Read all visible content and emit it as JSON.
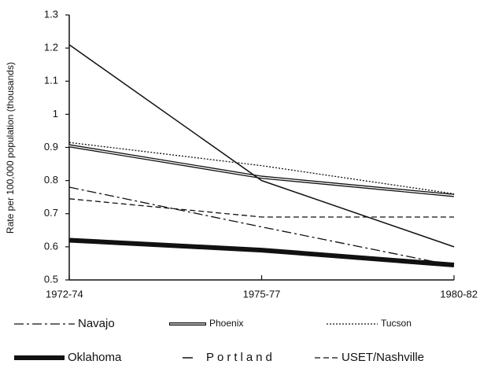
{
  "chart_data": {
    "type": "line",
    "y_label": "Rate per 100,000 population (thousands)",
    "categories": [
      "1972-74",
      "1975-77",
      "1980-82"
    ],
    "ylim": [
      0.5,
      1.3
    ],
    "yticks": [
      0.5,
      0.6,
      0.7,
      0.8,
      0.9,
      1,
      1.1,
      1.2,
      1.3
    ],
    "series": [
      {
        "name": "Navajo",
        "color": "#111111",
        "dash": "12 4 3 4",
        "width": 1.3,
        "values": [
          0.78,
          0.66,
          0.543
        ]
      },
      {
        "name": "Phoenix",
        "color": "#111111",
        "style": "double",
        "width": 4,
        "values": [
          0.905,
          0.81,
          0.755
        ]
      },
      {
        "name": "Tucson",
        "color": "#111111",
        "dash": "2 2",
        "width": 1.3,
        "values": [
          0.915,
          0.845,
          0.76
        ]
      },
      {
        "name": "Oklahoma",
        "color": "#111111",
        "width": 6,
        "values": [
          0.62,
          0.59,
          0.545
        ]
      },
      {
        "name": "Portland",
        "color": "#111111",
        "width": 1.5,
        "values": [
          1.21,
          0.8,
          0.6
        ]
      },
      {
        "name": "USET/Nashville",
        "color": "#111111",
        "dash": "7 4",
        "width": 1.3,
        "values": [
          0.745,
          0.69,
          0.69
        ]
      }
    ]
  }
}
